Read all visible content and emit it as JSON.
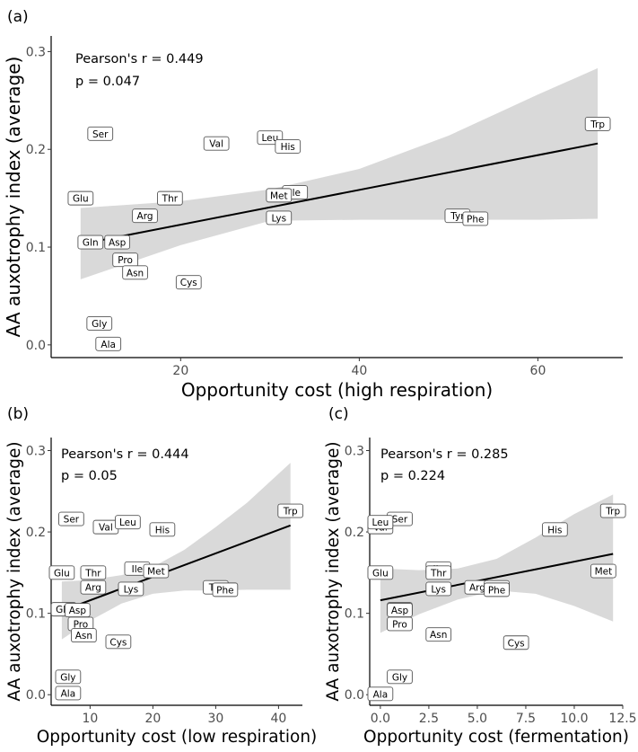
{
  "chart_data": [
    {
      "panel": "(a)",
      "type": "scatter",
      "xlabel": "Opportunity cost (high respiration)",
      "ylabel": "AA auxotrophy index (average)",
      "xlim": [
        5.5,
        69.5
      ],
      "ylim": [
        -0.013,
        0.316
      ],
      "xticks": [
        20,
        40,
        60
      ],
      "yticks": [
        0.0,
        0.1,
        0.2,
        0.3
      ],
      "stat_r": "Pearson's r = 0.449",
      "stat_p": "p = 0.047",
      "regression": {
        "x": [
          8.8,
          66.7
        ],
        "y": [
          0.103,
          0.206
        ]
      },
      "confidence_band": {
        "x": [
          8.8,
          20,
          30,
          40,
          50,
          60,
          66.7
        ],
        "lower": [
          0.067,
          0.102,
          0.127,
          0.128,
          0.128,
          0.128,
          0.129
        ],
        "upper": [
          0.14,
          0.147,
          0.159,
          0.18,
          0.214,
          0.256,
          0.283
        ]
      },
      "points": [
        {
          "label": "Trp",
          "x": 66.7,
          "y": 0.226
        },
        {
          "label": "Ser",
          "x": 11,
          "y": 0.216
        },
        {
          "label": "Val",
          "x": 24,
          "y": 0.206
        },
        {
          "label": "Leu",
          "x": 30,
          "y": 0.212
        },
        {
          "label": "His",
          "x": 32,
          "y": 0.203
        },
        {
          "label": "Ile",
          "x": 32.8,
          "y": 0.156
        },
        {
          "label": "Met",
          "x": 31,
          "y": 0.153
        },
        {
          "label": "Glu",
          "x": 8.8,
          "y": 0.15
        },
        {
          "label": "Thr",
          "x": 18.8,
          "y": 0.15
        },
        {
          "label": "Arg",
          "x": 16,
          "y": 0.132
        },
        {
          "label": "Lys",
          "x": 31,
          "y": 0.13
        },
        {
          "label": "Tyr",
          "x": 51,
          "y": 0.132
        },
        {
          "label": "Phe",
          "x": 53,
          "y": 0.129
        },
        {
          "label": "Gln",
          "x": 9.9,
          "y": 0.105
        },
        {
          "label": "Asp",
          "x": 12.9,
          "y": 0.105
        },
        {
          "label": "Pro",
          "x": 13.8,
          "y": 0.087
        },
        {
          "label": "Asn",
          "x": 14.9,
          "y": 0.074
        },
        {
          "label": "Cys",
          "x": 20.9,
          "y": 0.064
        },
        {
          "label": "Gly",
          "x": 10.9,
          "y": 0.022
        },
        {
          "label": "Ala",
          "x": 11.9,
          "y": 0.001
        }
      ]
    },
    {
      "panel": "(b)",
      "type": "scatter",
      "xlabel": "Opportunity cost (low respiration)",
      "ylabel": "AA auxotrophy index (average)",
      "xlim": [
        3.8,
        43.8
      ],
      "ylim": [
        -0.013,
        0.316
      ],
      "xticks": [
        10,
        20,
        30,
        40
      ],
      "yticks": [
        0.0,
        0.1,
        0.2,
        0.3
      ],
      "stat_r": "Pearson's r = 0.444",
      "stat_p": "p = 0.05",
      "regression": {
        "x": [
          5.5,
          41.9
        ],
        "y": [
          0.103,
          0.208
        ]
      },
      "confidence_band": {
        "x": [
          5.5,
          10,
          15,
          20,
          25,
          30,
          35,
          41.9
        ],
        "lower": [
          0.068,
          0.091,
          0.112,
          0.124,
          0.128,
          0.128,
          0.129,
          0.129
        ],
        "upper": [
          0.139,
          0.141,
          0.147,
          0.157,
          0.178,
          0.206,
          0.236,
          0.285
        ]
      },
      "points": [
        {
          "label": "Trp",
          "x": 41.9,
          "y": 0.226
        },
        {
          "label": "Ser",
          "x": 7,
          "y": 0.216
        },
        {
          "label": "Val",
          "x": 12.5,
          "y": 0.206
        },
        {
          "label": "Leu",
          "x": 16,
          "y": 0.212
        },
        {
          "label": "His",
          "x": 21.5,
          "y": 0.203
        },
        {
          "label": "Ile",
          "x": 17.5,
          "y": 0.155
        },
        {
          "label": "Met",
          "x": 20.5,
          "y": 0.152
        },
        {
          "label": "Glu",
          "x": 5.5,
          "y": 0.15
        },
        {
          "label": "Thr",
          "x": 10.5,
          "y": 0.15
        },
        {
          "label": "Arg",
          "x": 10.5,
          "y": 0.132
        },
        {
          "label": "Lys",
          "x": 16.5,
          "y": 0.13
        },
        {
          "label": "Tyr",
          "x": 30,
          "y": 0.132
        },
        {
          "label": "Phe",
          "x": 31.5,
          "y": 0.129
        },
        {
          "label": "Gln",
          "x": 5.8,
          "y": 0.105
        },
        {
          "label": "Asp",
          "x": 8,
          "y": 0.104
        },
        {
          "label": "Pro",
          "x": 8.5,
          "y": 0.087
        },
        {
          "label": "Asn",
          "x": 9,
          "y": 0.073
        },
        {
          "label": "Cys",
          "x": 14.5,
          "y": 0.065
        },
        {
          "label": "Gly",
          "x": 6.5,
          "y": 0.022
        },
        {
          "label": "Ala",
          "x": 6.5,
          "y": 0.002
        }
      ]
    },
    {
      "panel": "(c)",
      "type": "scatter",
      "xlabel": "Opportunity cost (fermentation)",
      "ylabel": "AA auxotrophy index (average)",
      "xlim": [
        -0.55,
        12.5
      ],
      "ylim": [
        -0.013,
        0.316
      ],
      "xticks": [
        0.0,
        2.5,
        5.0,
        7.5,
        10.0,
        12.5
      ],
      "yticks": [
        0.0,
        0.1,
        0.2,
        0.3
      ],
      "stat_r": "Pearson's r = 0.285",
      "stat_p": "p = 0.224",
      "regression": {
        "x": [
          0,
          12
        ],
        "y": [
          0.116,
          0.173
        ]
      },
      "confidence_band": {
        "x": [
          0,
          2,
          4,
          6,
          8,
          10,
          12
        ],
        "lower": [
          0.076,
          0.099,
          0.117,
          0.128,
          0.124,
          0.109,
          0.09
        ],
        "upper": [
          0.155,
          0.153,
          0.155,
          0.167,
          0.193,
          0.222,
          0.246
        ]
      },
      "points": [
        {
          "label": "Trp",
          "x": 12,
          "y": 0.226
        },
        {
          "label": "Ser",
          "x": 1,
          "y": 0.216
        },
        {
          "label": "Val",
          "x": 0,
          "y": 0.206
        },
        {
          "label": "Leu",
          "x": 0,
          "y": 0.212
        },
        {
          "label": "His",
          "x": 9,
          "y": 0.203
        },
        {
          "label": "Ile",
          "x": 3,
          "y": 0.155
        },
        {
          "label": "Thr",
          "x": 3,
          "y": 0.15
        },
        {
          "label": "Met",
          "x": 11.5,
          "y": 0.152
        },
        {
          "label": "Glu",
          "x": 0,
          "y": 0.15
        },
        {
          "label": "Arg",
          "x": 5,
          "y": 0.132
        },
        {
          "label": "Lys",
          "x": 3,
          "y": 0.13
        },
        {
          "label": "Tyr",
          "x": 6,
          "y": 0.132
        },
        {
          "label": "Phe",
          "x": 6,
          "y": 0.129
        },
        {
          "label": "Gln",
          "x": 1,
          "y": 0.105
        },
        {
          "label": "Asp",
          "x": 1,
          "y": 0.104
        },
        {
          "label": "Pro",
          "x": 1,
          "y": 0.087
        },
        {
          "label": "Asn",
          "x": 3,
          "y": 0.074
        },
        {
          "label": "Cys",
          "x": 7,
          "y": 0.064
        },
        {
          "label": "Gly",
          "x": 1,
          "y": 0.022
        },
        {
          "label": "Ala",
          "x": 0,
          "y": 0.001
        }
      ]
    }
  ]
}
